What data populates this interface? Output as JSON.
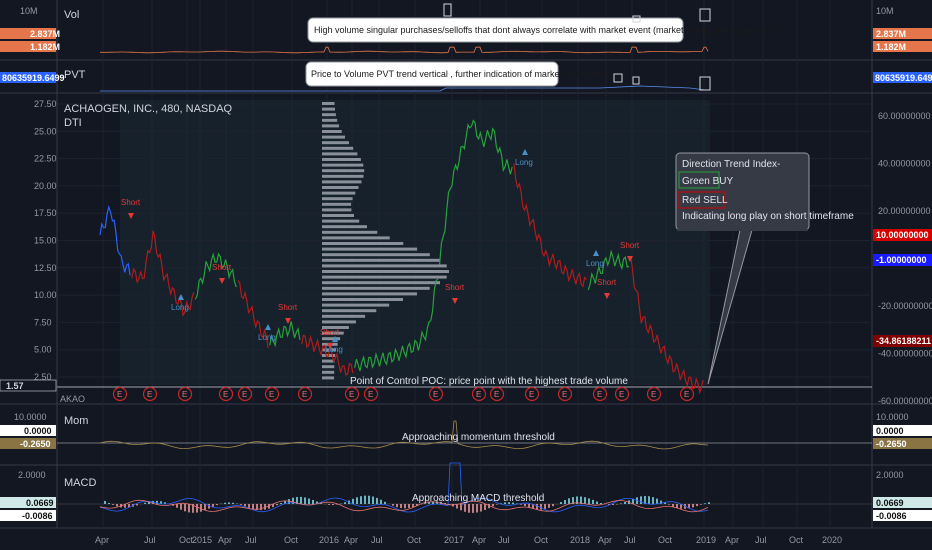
{
  "colors": {
    "bg": "#131722",
    "grid": "#1e2230",
    "buy": "#26a33a",
    "sell": "#b31b1b",
    "blue": "#2962ff",
    "earn": "#c62828",
    "hist": "#9ea3ad",
    "accent_pos": "#2962ff",
    "text": "#b2b5be"
  },
  "panes": {
    "vol": {
      "label": "Vol",
      "ticks": [
        "10M"
      ],
      "right_tags": [
        "2.837M",
        "1.182M"
      ],
      "left_tags": [
        "2.837M",
        "1.182M"
      ],
      "note": "High volume singular purchases/selloffs  that dont always correlate with market event (market manipulation present)"
    },
    "pvt": {
      "label": "PVT",
      "tag": "80635919.6499",
      "note": "Price to Volume PVT trend vertical , further indication of market manipulation"
    },
    "main": {
      "symbol": "ACHAOGEN, INC., 480, NASDAQ",
      "indicator": "DTI",
      "left_ticks": [
        "27.50",
        "25.00",
        "22.50",
        "20.00",
        "17.50",
        "15.00",
        "12.50",
        "10.00",
        "7.50",
        "5.00",
        "2.50"
      ],
      "right_ticks": [
        "60.00000000",
        "40.00000000",
        "20.00000000",
        "-20.00000000",
        "-40.00000000",
        "-60.00000000"
      ],
      "right_tags": [
        "10.00000000",
        "-1.00000000",
        "-34.86188211"
      ],
      "last_price": "1.57",
      "ticker_tag": "AKAO",
      "earnings_letter": "E",
      "poc_note": "Point of Control POC: price point with the highest trade volume",
      "legend": {
        "title": "Direction Trend Index-",
        "buy": "Green BUY",
        "sell": "Red SELL",
        "note": "Indicating long play on short timeframe"
      }
    },
    "mom": {
      "label": "Mom",
      "ticks": [
        "10.0000"
      ],
      "right_tags": [
        "0.0000",
        "-0.2650"
      ],
      "left_tags": [
        "0.0000",
        "-0.2650"
      ],
      "note": "Approaching momentum threshold"
    },
    "macd": {
      "label": "MACD",
      "ticks": [
        "2.0000"
      ],
      "right_tags": [
        "0.0669",
        "-0.0086"
      ],
      "left_tags": [
        "0.0669",
        "-0.0086"
      ],
      "note": "Approaching MACD threshold"
    }
  },
  "x_axis": {
    "labels": [
      "Apr",
      "Jul",
      "Oct",
      "2015",
      "Apr",
      "Jul",
      "Oct",
      "2016",
      "Apr",
      "Jul",
      "Oct",
      "2017",
      "Apr",
      "Jul",
      "Oct",
      "2018",
      "Apr",
      "Jul",
      "Oct",
      "2019",
      "Apr",
      "Jul",
      "Oct",
      "2020"
    ]
  },
  "signals": [
    "Short",
    "Long",
    "Short",
    "Long",
    "Short",
    "Long",
    "Short",
    "Long",
    "Short",
    "Short",
    "Long",
    "Short"
  ],
  "chart_data": {
    "type": "line",
    "title": "ACHAOGEN, INC., 480, NASDAQ",
    "xlabel": "",
    "ylabel": "",
    "ylim": [
      0,
      27.5
    ],
    "x": [
      "2014-04",
      "2014-05",
      "2014-06",
      "2014-07",
      "2014-08",
      "2014-09",
      "2014-10",
      "2014-11",
      "2014-12",
      "2015-01",
      "2015-02",
      "2015-03",
      "2015-04",
      "2015-05",
      "2015-06",
      "2015-07",
      "2015-08",
      "2015-09",
      "2015-10",
      "2015-11",
      "2015-12",
      "2016-01",
      "2016-02",
      "2016-03",
      "2016-04",
      "2016-05",
      "2016-06",
      "2016-07",
      "2016-08",
      "2016-09",
      "2016-10",
      "2016-11",
      "2016-12",
      "2017-01",
      "2017-02",
      "2017-03",
      "2017-04",
      "2017-05",
      "2017-06",
      "2017-07",
      "2017-08",
      "2017-09",
      "2017-10",
      "2017-11",
      "2017-12",
      "2018-01",
      "2018-02",
      "2018-03",
      "2018-04",
      "2018-05",
      "2018-06",
      "2018-07",
      "2018-08",
      "2018-09",
      "2018-10",
      "2018-11",
      "2018-12",
      "2019-01"
    ],
    "series": [
      {
        "name": "",
        "values": [
          15.5,
          18.0,
          13.0,
          12.0,
          11.5,
          15.5,
          12.0,
          10.0,
          8.5,
          10.0,
          12.5,
          13.5,
          12.5,
          11.0,
          9.0,
          7.0,
          5.5,
          6.5,
          7.0,
          6.0,
          5.5,
          5.0,
          4.5,
          3.0,
          3.5,
          3.8,
          4.0,
          4.2,
          4.5,
          5.0,
          5.5,
          7.0,
          13.0,
          20.0,
          23.0,
          26.0,
          24.0,
          25.0,
          22.0,
          21.5,
          18.0,
          16.0,
          13.5,
          13.0,
          12.0,
          11.5,
          11.0,
          12.0,
          13.5,
          13.0,
          13.0,
          8.0,
          6.5,
          5.0,
          3.5,
          2.5,
          1.8,
          1.57
        ]
      }
    ],
    "volume_profile": [
      0.2,
      0.5,
      0.7,
      0.9,
      0.8,
      1.0,
      0.9,
      0.8,
      0.6,
      0.5,
      0.4,
      0.3,
      0.3,
      0.2,
      0.2,
      0.15,
      0.15,
      0.1,
      0.1,
      0.1
    ],
    "dti": {
      "overbought": 10,
      "oversold": -1,
      "last": -34.86188211,
      "ylim": [
        -60,
        60
      ]
    }
  }
}
